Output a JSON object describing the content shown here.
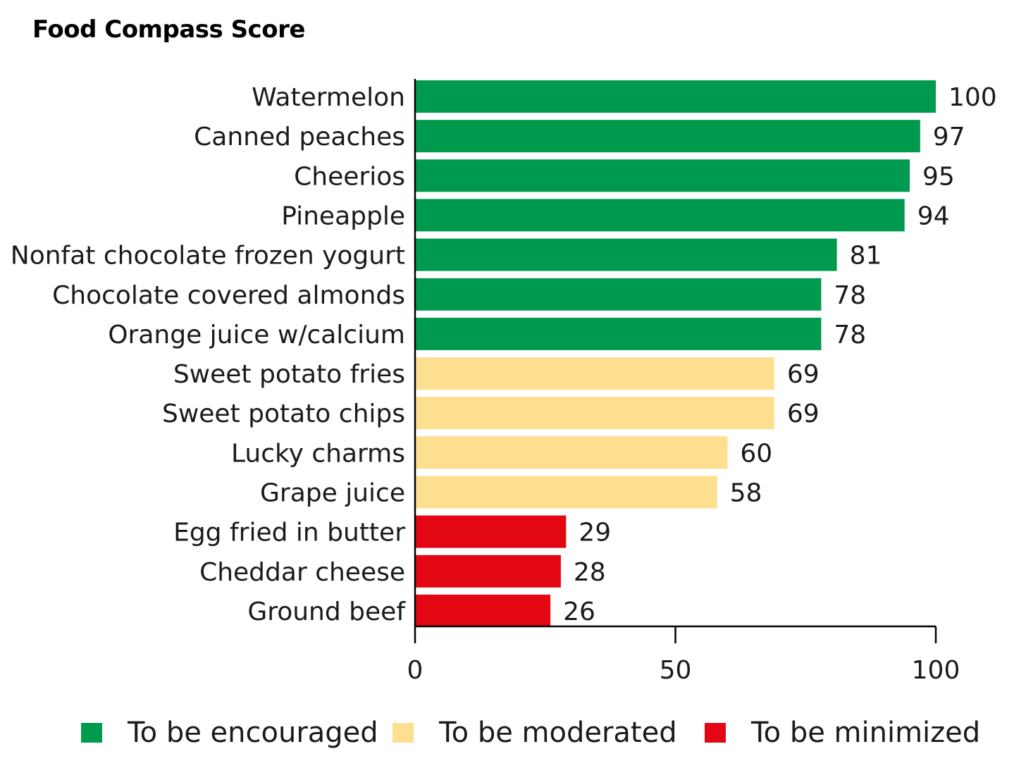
{
  "chart_data": {
    "type": "bar",
    "orientation": "horizontal",
    "title": "Food Compass Score",
    "xlabel": "",
    "ylabel": "",
    "xlim": [
      0,
      100
    ],
    "x_ticks": [
      "0",
      "50",
      "100"
    ],
    "grid": false,
    "categories": [
      "Watermelon",
      "Canned peaches",
      "Cheerios",
      "Pineapple",
      "Nonfat chocolate frozen yogurt",
      "Chocolate covered almonds",
      "Orange juice w/calcium",
      "Sweet potato fries",
      "Sweet potato chips",
      "Lucky charms",
      "Grape juice",
      "Egg fried in butter",
      "Cheddar cheese",
      "Ground beef"
    ],
    "values": [
      100,
      97,
      95,
      94,
      81,
      78,
      78,
      69,
      69,
      60,
      58,
      29,
      28,
      26
    ],
    "groups": [
      "encouraged",
      "encouraged",
      "encouraged",
      "encouraged",
      "encouraged",
      "encouraged",
      "encouraged",
      "moderated",
      "moderated",
      "moderated",
      "moderated",
      "minimized",
      "minimized",
      "minimized"
    ],
    "legend_position": "bottom",
    "legend": [
      {
        "key": "encouraged",
        "label": "To be encouraged",
        "color": "#009a4e"
      },
      {
        "key": "moderated",
        "label": "To be moderated",
        "color": "#fddf8f"
      },
      {
        "key": "minimized",
        "label": "To be minimized",
        "color": "#e30613"
      }
    ]
  }
}
